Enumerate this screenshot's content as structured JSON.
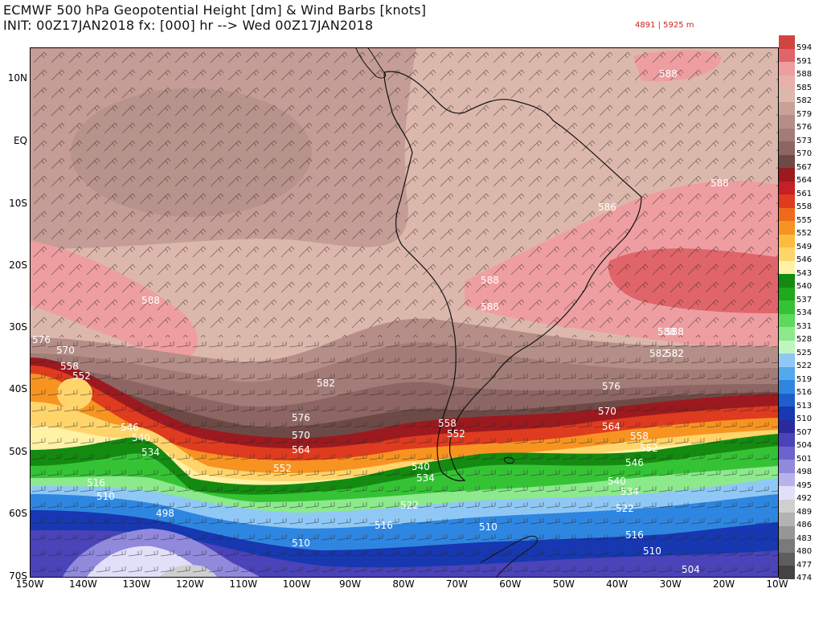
{
  "header": {
    "title_line1": "ECMWF 500 hPa Geopotential Height [dm] & Wind Barbs [knots]",
    "title_line2": "INIT: 00Z17JAN2018 fx: [000] hr --> Wed 00Z17JAN2018",
    "range": "4891 | 5925 m"
  },
  "colorbar": {
    "levels": [
      {
        "label": "594",
        "color": "#d2443f"
      },
      {
        "label": "591",
        "color": "#e0656a"
      },
      {
        "label": "588",
        "color": "#ee9ea0"
      },
      {
        "label": "585",
        "color": "#e8b0a8"
      },
      {
        "label": "582",
        "color": "#dcb8ac"
      },
      {
        "label": "579",
        "color": "#c9a199"
      },
      {
        "label": "576",
        "color": "#b58e88"
      },
      {
        "label": "573",
        "color": "#a37c78"
      },
      {
        "label": "570",
        "color": "#8d6663"
      },
      {
        "label": "567",
        "color": "#6e4a47"
      },
      {
        "label": "564",
        "color": "#9c1a1f"
      },
      {
        "label": "561",
        "color": "#c42026"
      },
      {
        "label": "558",
        "color": "#df3b1f"
      },
      {
        "label": "555",
        "color": "#ef6a1c"
      },
      {
        "label": "552",
        "color": "#f79421"
      },
      {
        "label": "549",
        "color": "#fcbc3d"
      },
      {
        "label": "546",
        "color": "#ffd56b"
      },
      {
        "label": "543",
        "color": "#fff1a6"
      },
      {
        "label": "540",
        "color": "#148a10"
      },
      {
        "label": "537",
        "color": "#1fa81c"
      },
      {
        "label": "534",
        "color": "#35c335"
      },
      {
        "label": "531",
        "color": "#5dd95d"
      },
      {
        "label": "528",
        "color": "#8ce98c"
      },
      {
        "label": "525",
        "color": "#bff5bf"
      },
      {
        "label": "522",
        "color": "#90c8f5"
      },
      {
        "label": "519",
        "color": "#55a8ee"
      },
      {
        "label": "516",
        "color": "#2f86e0"
      },
      {
        "label": "513",
        "color": "#1c5fcc"
      },
      {
        "label": "510",
        "color": "#1738b0"
      },
      {
        "label": "507",
        "color": "#2a2a9c"
      },
      {
        "label": "504",
        "color": "#4b43b8"
      },
      {
        "label": "501",
        "color": "#6c63cc"
      },
      {
        "label": "498",
        "color": "#9189dc"
      },
      {
        "label": "495",
        "color": "#b7b2ec"
      },
      {
        "label": "492",
        "color": "#e2e0f8"
      },
      {
        "label": "489",
        "color": "#cfcfcf"
      },
      {
        "label": "486",
        "color": "#b3b3b3"
      },
      {
        "label": "483",
        "color": "#969696"
      },
      {
        "label": "480",
        "color": "#7a7a7a"
      },
      {
        "label": "477",
        "color": "#5e5e5e"
      },
      {
        "label": "474",
        "color": "#434343"
      }
    ]
  },
  "axes": {
    "lat_labels": [
      "10N",
      "EQ",
      "10S",
      "20S",
      "30S",
      "40S",
      "50S",
      "60S",
      "70S"
    ],
    "lon_labels": [
      "150W",
      "140W",
      "130W",
      "120W",
      "110W",
      "100W",
      "90W",
      "80W",
      "70W",
      "60W",
      "50W",
      "40W",
      "30W",
      "20W",
      "10W"
    ]
  },
  "contour_labels": [
    {
      "text": "588"
    },
    {
      "text": "588"
    },
    {
      "text": "586"
    },
    {
      "text": "588"
    },
    {
      "text": "588"
    },
    {
      "text": "588"
    },
    {
      "text": "588"
    },
    {
      "text": "582"
    },
    {
      "text": "576"
    },
    {
      "text": "570"
    },
    {
      "text": "558"
    },
    {
      "text": "552"
    },
    {
      "text": "582"
    },
    {
      "text": "576"
    },
    {
      "text": "570"
    },
    {
      "text": "564"
    },
    {
      "text": "552"
    },
    {
      "text": "546"
    },
    {
      "text": "540"
    },
    {
      "text": "534"
    },
    {
      "text": "516"
    },
    {
      "text": "510"
    },
    {
      "text": "498"
    },
    {
      "text": "510"
    },
    {
      "text": "516"
    },
    {
      "text": "522"
    },
    {
      "text": "558"
    },
    {
      "text": "552"
    },
    {
      "text": "540"
    },
    {
      "text": "534"
    },
    {
      "text": "510"
    },
    {
      "text": "576"
    },
    {
      "text": "570"
    },
    {
      "text": "564"
    },
    {
      "text": "558"
    },
    {
      "text": "552"
    },
    {
      "text": "546"
    },
    {
      "text": "540"
    },
    {
      "text": "534"
    },
    {
      "text": "522"
    },
    {
      "text": "516"
    },
    {
      "text": "510"
    },
    {
      "text": "504"
    },
    {
      "text": "582"
    },
    {
      "text": "588"
    },
    {
      "text": "582"
    }
  ]
}
